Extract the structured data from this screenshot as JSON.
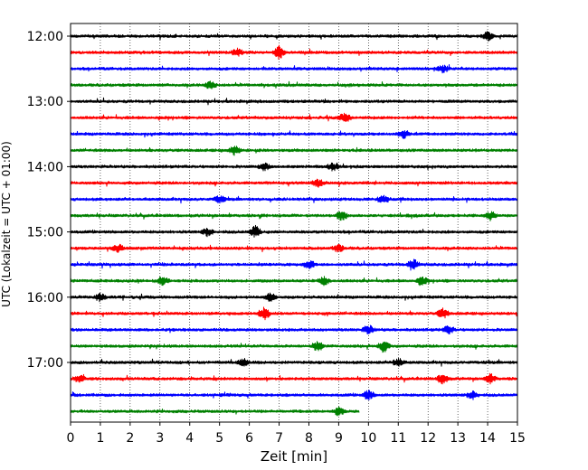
{
  "chart_data": {
    "type": "line",
    "xlabel": "Zeit  [min]",
    "ylabel": "UTC (Lokalzeit = UTC + 01:00)",
    "xlim": [
      0,
      15
    ],
    "x_ticks": [
      "0",
      "1",
      "2",
      "3",
      "4",
      "5",
      "6",
      "7",
      "8",
      "9",
      "10",
      "11",
      "12",
      "13",
      "14",
      "15"
    ],
    "y_ticks": [
      "12:00",
      "13:00",
      "14:00",
      "15:00",
      "16:00",
      "17:00"
    ],
    "grid": "vertical dotted",
    "color_cycle": [
      "#000000",
      "#ff0000",
      "#0000ff",
      "#008000"
    ],
    "trace_offset_min": 15,
    "series": [
      {
        "start": "12:00",
        "color": "#000000",
        "end_min": 15,
        "events": [
          [
            14.0,
            1.5
          ]
        ]
      },
      {
        "start": "12:15",
        "color": "#ff0000",
        "end_min": 15,
        "events": [
          [
            7.0,
            2.2
          ],
          [
            5.6,
            1.2
          ]
        ]
      },
      {
        "start": "12:30",
        "color": "#0000ff",
        "end_min": 15,
        "events": [
          [
            12.5,
            1.3
          ]
        ]
      },
      {
        "start": "12:45",
        "color": "#008000",
        "end_min": 15,
        "events": [
          [
            4.7,
            1.2
          ]
        ]
      },
      {
        "start": "13:00",
        "color": "#000000",
        "end_min": 15,
        "events": []
      },
      {
        "start": "13:15",
        "color": "#ff0000",
        "end_min": 15,
        "events": [
          [
            9.2,
            1.5
          ]
        ]
      },
      {
        "start": "13:30",
        "color": "#0000ff",
        "end_min": 15,
        "events": [
          [
            11.2,
            1.3
          ]
        ]
      },
      {
        "start": "13:45",
        "color": "#008000",
        "end_min": 15,
        "events": [
          [
            5.5,
            1.5
          ]
        ]
      },
      {
        "start": "14:00",
        "color": "#000000",
        "end_min": 15,
        "events": [
          [
            6.5,
            1.3
          ],
          [
            8.8,
            1.2
          ]
        ]
      },
      {
        "start": "14:15",
        "color": "#ff0000",
        "end_min": 15,
        "events": [
          [
            8.3,
            1.2
          ]
        ]
      },
      {
        "start": "14:30",
        "color": "#0000ff",
        "end_min": 15,
        "events": [
          [
            5.0,
            1.2
          ],
          [
            10.5,
            1.2
          ]
        ]
      },
      {
        "start": "14:45",
        "color": "#008000",
        "end_min": 15,
        "events": [
          [
            9.1,
            1.6
          ],
          [
            14.1,
            1.4
          ]
        ]
      },
      {
        "start": "15:00",
        "color": "#000000",
        "end_min": 15,
        "events": [
          [
            6.2,
            2.0
          ],
          [
            4.6,
            1.2
          ]
        ]
      },
      {
        "start": "15:15",
        "color": "#ff0000",
        "end_min": 15,
        "events": [
          [
            1.6,
            1.2
          ],
          [
            9.0,
            1.2
          ]
        ]
      },
      {
        "start": "15:30",
        "color": "#0000ff",
        "end_min": 15,
        "events": [
          [
            11.5,
            1.8
          ],
          [
            8.0,
            1.4
          ]
        ]
      },
      {
        "start": "15:45",
        "color": "#008000",
        "end_min": 15,
        "events": [
          [
            3.1,
            1.4
          ],
          [
            8.5,
            1.3
          ],
          [
            11.8,
            1.3
          ]
        ]
      },
      {
        "start": "16:00",
        "color": "#000000",
        "end_min": 15,
        "events": [
          [
            1.0,
            1.2
          ],
          [
            6.7,
            1.3
          ]
        ]
      },
      {
        "start": "16:15",
        "color": "#ff0000",
        "end_min": 15,
        "events": [
          [
            6.5,
            2.0
          ],
          [
            12.5,
            1.6
          ]
        ]
      },
      {
        "start": "16:30",
        "color": "#0000ff",
        "end_min": 15,
        "events": [
          [
            10.0,
            1.4
          ],
          [
            12.7,
            1.3
          ]
        ]
      },
      {
        "start": "16:45",
        "color": "#008000",
        "end_min": 15,
        "events": [
          [
            8.3,
            1.6
          ],
          [
            10.5,
            2.0
          ]
        ]
      },
      {
        "start": "17:00",
        "color": "#000000",
        "end_min": 15,
        "events": [
          [
            11.0,
            1.4
          ],
          [
            5.8,
            1.2
          ]
        ]
      },
      {
        "start": "17:15",
        "color": "#ff0000",
        "end_min": 15,
        "events": [
          [
            12.5,
            1.8
          ],
          [
            0.3,
            1.3
          ],
          [
            14.1,
            1.5
          ]
        ]
      },
      {
        "start": "17:30",
        "color": "#0000ff",
        "end_min": 15,
        "events": [
          [
            10.0,
            1.6
          ],
          [
            13.5,
            1.3
          ]
        ]
      },
      {
        "start": "17:45",
        "color": "#008000",
        "end_min": 9.7,
        "events": [
          [
            9.0,
            1.3
          ]
        ]
      }
    ]
  }
}
